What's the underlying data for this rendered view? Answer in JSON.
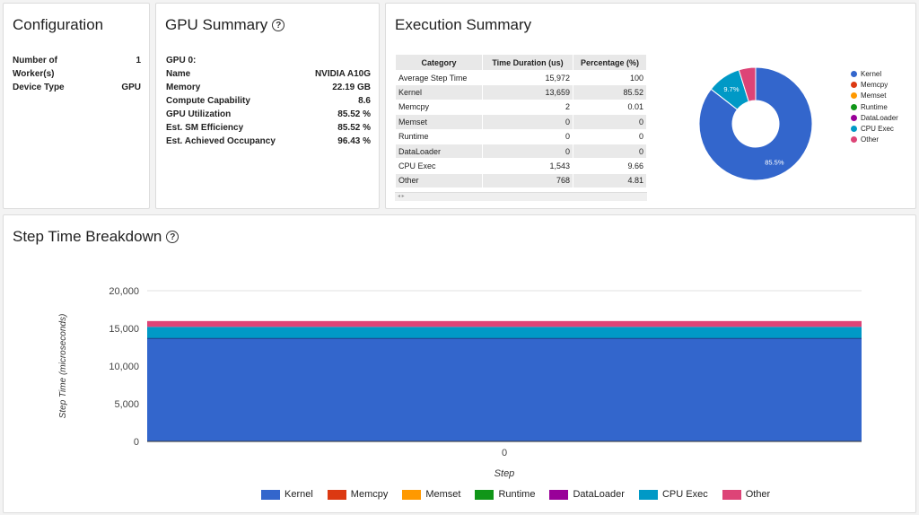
{
  "configuration": {
    "title": "Configuration",
    "rows": [
      {
        "label": "Number of",
        "label2": "Worker(s)",
        "value": "1"
      },
      {
        "label": "Device Type",
        "value": "GPU"
      }
    ]
  },
  "gpu_summary": {
    "title": "GPU Summary",
    "help": "?",
    "heading": "GPU 0:",
    "rows": [
      {
        "label": "Name",
        "value": "NVIDIA A10G"
      },
      {
        "label": "Memory",
        "value": "22.19 GB"
      },
      {
        "label": "Compute Capability",
        "value": "8.6"
      },
      {
        "label": "GPU Utilization",
        "value": "85.52 %"
      },
      {
        "label": "Est. SM Efficiency",
        "value": "85.52 %"
      },
      {
        "label": "Est. Achieved Occupancy",
        "value": "96.43 %"
      }
    ]
  },
  "execution_summary": {
    "title": "Execution Summary",
    "table": {
      "headers": [
        "Category",
        "Time Duration (us)",
        "Percentage (%)"
      ],
      "rows": [
        [
          "Average Step Time",
          "15,972",
          "100"
        ],
        [
          "Kernel",
          "13,659",
          "85.52"
        ],
        [
          "Memcpy",
          "2",
          "0.01"
        ],
        [
          "Memset",
          "0",
          "0"
        ],
        [
          "Runtime",
          "0",
          "0"
        ],
        [
          "DataLoader",
          "0",
          "0"
        ],
        [
          "CPU Exec",
          "1,543",
          "9.66"
        ],
        [
          "Other",
          "768",
          "4.81"
        ]
      ]
    },
    "scroll_arrows": "◂ ▸"
  },
  "step_time": {
    "title": "Step Time Breakdown",
    "help": "?"
  },
  "colors": {
    "Kernel": "#3366cc",
    "Memcpy": "#dc3912",
    "Memset": "#ff9900",
    "Runtime": "#109618",
    "DataLoader": "#990099",
    "CPU Exec": "#0099c6",
    "Other": "#dd4477"
  },
  "chart_data": [
    {
      "type": "pie",
      "donut": true,
      "labels": [
        "Kernel",
        "Memcpy",
        "Memset",
        "Runtime",
        "DataLoader",
        "CPU Exec",
        "Other"
      ],
      "values": [
        13659,
        2,
        0,
        0,
        0,
        1543,
        768
      ],
      "slice_labels": [
        "85.5%",
        "",
        "",
        "",
        "",
        "9.7%",
        ""
      ],
      "legend_position": "right"
    },
    {
      "type": "area",
      "stacked": true,
      "title": "",
      "xlabel": "Step",
      "ylabel": "Step Time (microseconds)",
      "categories": [
        "0"
      ],
      "ylim": [
        0,
        20000
      ],
      "yticks": [
        "0",
        "5,000",
        "10,000",
        "15,000",
        "20,000"
      ],
      "series": [
        {
          "name": "Kernel",
          "values": [
            13659
          ]
        },
        {
          "name": "Memcpy",
          "values": [
            2
          ]
        },
        {
          "name": "Memset",
          "values": [
            0
          ]
        },
        {
          "name": "Runtime",
          "values": [
            0
          ]
        },
        {
          "name": "DataLoader",
          "values": [
            0
          ]
        },
        {
          "name": "CPU Exec",
          "values": [
            1543
          ]
        },
        {
          "name": "Other",
          "values": [
            768
          ]
        }
      ],
      "legend_position": "bottom"
    }
  ]
}
